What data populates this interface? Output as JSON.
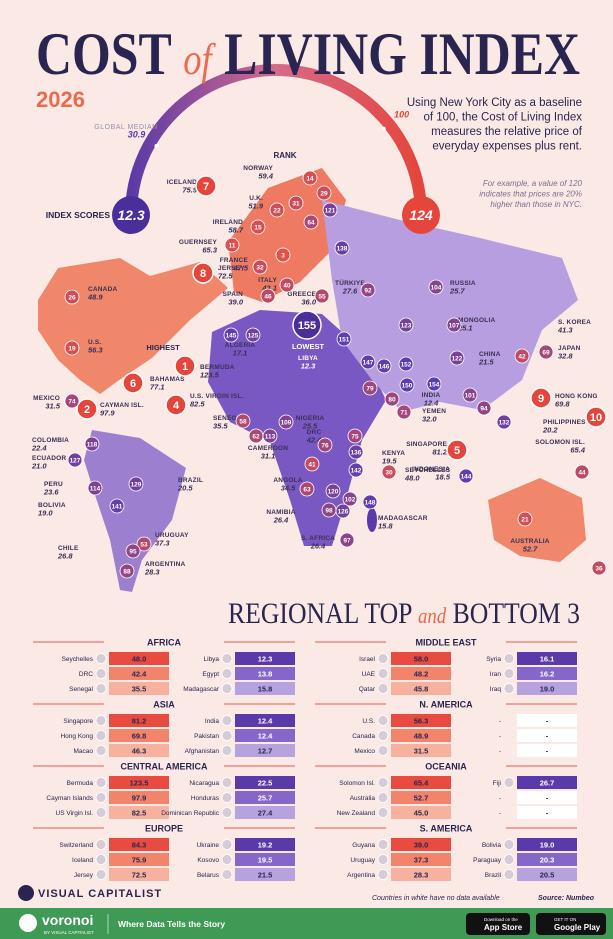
{
  "header": {
    "title_part1": "COST",
    "title_of": "of",
    "title_part2": "LIVING INDEX",
    "year": "2026",
    "description_lines": [
      "Using New York City as a baseline",
      "of 100, the Cost of Living Index",
      "measures the relative price of",
      "everyday expenses plus rent."
    ],
    "example_lines": [
      "For example, a value of 120",
      "indicates that prices are 20%",
      "higher than those in NYC."
    ]
  },
  "scale": {
    "label": "INDEX SCORES",
    "min": 12.3,
    "max": 124,
    "median": 30.9,
    "median_label": "GLOBAL MEDIAN",
    "baseline": 100,
    "rank_label": "RANK",
    "highest_label": "HIGHEST",
    "lowest_label": "LOWEST"
  },
  "map_labels": [
    {
      "name": "ICELAND",
      "value": "75.9",
      "rank": 7
    },
    {
      "name": "NORWAY",
      "value": "59.4"
    },
    {
      "name": "U.K.",
      "value": "51.9"
    },
    {
      "name": "IRELAND",
      "value": "58.7"
    },
    {
      "name": "GUERNSEY",
      "value": "65.3"
    },
    {
      "name": "JERSEY",
      "value": "72.5",
      "rank": 8
    },
    {
      "name": "FRANCE",
      "value": "47.5"
    },
    {
      "name": "ITALY",
      "value": "43.1"
    },
    {
      "name": "SPAIN",
      "value": "39.0"
    },
    {
      "name": "GREECE",
      "value": "36.0"
    },
    {
      "name": "TÜRKIYE",
      "value": "27.6"
    },
    {
      "name": "RUSSIA",
      "value": "25.7"
    },
    {
      "name": "CANADA",
      "value": "48.9"
    },
    {
      "name": "U.S.",
      "value": "56.3"
    },
    {
      "name": "MEXICO",
      "value": "31.5"
    },
    {
      "name": "BAHAMAS",
      "value": "77.1",
      "rank": 6
    },
    {
      "name": "CAYMAN ISL.",
      "value": "97.9",
      "rank": 2
    },
    {
      "name": "U.S. VIRGIN ISL.",
      "value": "82.5",
      "rank": 4
    },
    {
      "name": "BERMUDA",
      "value": "123.5",
      "rank": 1
    },
    {
      "name": "SENEGAL",
      "value": "35.5"
    },
    {
      "name": "ALGERIA",
      "value": "17.1"
    },
    {
      "name": "LIBYA",
      "value": "12.3",
      "rank": 155
    },
    {
      "name": "NIGERIA",
      "value": "25.5"
    },
    {
      "name": "CAMEROON",
      "value": "31.1"
    },
    {
      "name": "DRC",
      "value": "42.4"
    },
    {
      "name": "ANGOLA",
      "value": "34.5"
    },
    {
      "name": "NAMIBIA",
      "value": "26.4"
    },
    {
      "name": "S. AFRICA",
      "value": "26.4"
    },
    {
      "name": "KENYA",
      "value": "19.5"
    },
    {
      "name": "SEYCHELLES",
      "value": "48.0"
    },
    {
      "name": "MADAGASCAR",
      "value": "15.8"
    },
    {
      "name": "YEMEN",
      "value": "32.0"
    },
    {
      "name": "SINGAPORE",
      "value": "81.2",
      "rank": 5
    },
    {
      "name": "INDIA",
      "value": "12.4"
    },
    {
      "name": "CHINA",
      "value": "21.5"
    },
    {
      "name": "MONGOLIA",
      "value": "25.1"
    },
    {
      "name": "S. KOREA",
      "value": "41.3"
    },
    {
      "name": "JAPAN",
      "value": "32.8"
    },
    {
      "name": "HONG KONG",
      "value": "69.8",
      "rank": 9
    },
    {
      "name": "PHILIPPINES",
      "value": "20.2"
    },
    {
      "name": "SOLOMON ISL.",
      "value": "65.4",
      "rank": 10
    },
    {
      "name": "INDONESIA",
      "value": "18.5"
    },
    {
      "name": "AUSTRALIA",
      "value": "52.7"
    },
    {
      "name": "COLOMBIA",
      "value": "22.4"
    },
    {
      "name": "ECUADOR",
      "value": "21.0"
    },
    {
      "name": "PERU",
      "value": "23.6"
    },
    {
      "name": "BOLIVIA",
      "value": "19.0"
    },
    {
      "name": "BRAZIL",
      "value": "20.5"
    },
    {
      "name": "URUGUAY",
      "value": "37.3"
    },
    {
      "name": "CHILE",
      "value": "26.8"
    },
    {
      "name": "ARGENTINA",
      "value": "28.3"
    }
  ],
  "map_ranks": [
    14,
    29,
    31,
    22,
    15,
    11,
    64,
    121,
    3,
    32,
    40,
    138,
    55,
    92,
    46,
    26,
    19,
    125,
    145,
    151,
    104,
    123,
    107,
    122,
    147,
    146,
    152,
    150,
    154,
    101,
    94,
    42,
    69,
    132,
    79,
    80,
    71,
    74,
    58,
    62,
    113,
    109,
    75,
    76,
    136,
    142,
    41,
    63,
    120,
    102,
    98,
    126,
    97,
    148,
    30,
    144,
    44,
    21,
    36,
    127,
    118,
    114,
    129,
    141,
    53,
    88,
    95
  ],
  "regional": {
    "title_part1": "REGIONAL TOP",
    "title_and": "and",
    "title_part2": "BOTTOM 3",
    "regions": [
      {
        "name": "AFRICA",
        "top": [
          {
            "name": "Seychelles",
            "value": "48.0"
          },
          {
            "name": "DRC",
            "value": "42.4"
          },
          {
            "name": "Senegal",
            "value": "35.5"
          }
        ],
        "bottom": [
          {
            "name": "Libya",
            "value": "12.3"
          },
          {
            "name": "Egypt",
            "value": "13.8"
          },
          {
            "name": "Madagascar",
            "value": "15.8"
          }
        ]
      },
      {
        "name": "MIDDLE EAST",
        "top": [
          {
            "name": "Israel",
            "value": "58.0"
          },
          {
            "name": "UAE",
            "value": "48.2"
          },
          {
            "name": "Qatar",
            "value": "45.8"
          }
        ],
        "bottom": [
          {
            "name": "Syria",
            "value": "16.1"
          },
          {
            "name": "Iran",
            "value": "16.2"
          },
          {
            "name": "Iraq",
            "value": "19.0"
          }
        ]
      },
      {
        "name": "ASIA",
        "top": [
          {
            "name": "Singapore",
            "value": "81.2"
          },
          {
            "name": "Hong Kong",
            "value": "69.8"
          },
          {
            "name": "Macao",
            "value": "46.3"
          }
        ],
        "bottom": [
          {
            "name": "India",
            "value": "12.4"
          },
          {
            "name": "Pakistan",
            "value": "12.4"
          },
          {
            "name": "Afghanistan",
            "value": "12.7"
          }
        ]
      },
      {
        "name": "N. AMERICA",
        "top": [
          {
            "name": "U.S.",
            "value": "56.3"
          },
          {
            "name": "Canada",
            "value": "48.9"
          },
          {
            "name": "Mexico",
            "value": "31.5"
          }
        ],
        "bottom": [
          {
            "name": "-",
            "value": "-"
          },
          {
            "name": "-",
            "value": "-"
          },
          {
            "name": "-",
            "value": "-"
          }
        ]
      },
      {
        "name": "CENTRAL AMERICA",
        "top": [
          {
            "name": "Bermuda",
            "value": "123.5"
          },
          {
            "name": "Cayman Islands",
            "value": "97.9"
          },
          {
            "name": "US Virgin Isl.",
            "value": "82.5"
          }
        ],
        "bottom": [
          {
            "name": "Nicaragua",
            "value": "22.5"
          },
          {
            "name": "Honduras",
            "value": "25.7"
          },
          {
            "name": "Dominican Republic",
            "value": "27.4"
          }
        ]
      },
      {
        "name": "OCEANIA",
        "top": [
          {
            "name": "Solomon Isl.",
            "value": "65.4"
          },
          {
            "name": "Australia",
            "value": "52.7"
          },
          {
            "name": "New Zealand",
            "value": "45.0"
          }
        ],
        "bottom": [
          {
            "name": "Fiji",
            "value": "26.7"
          },
          {
            "name": "-",
            "value": "-"
          },
          {
            "name": "-",
            "value": "-"
          }
        ]
      },
      {
        "name": "EUROPE",
        "top": [
          {
            "name": "Switzerland",
            "value": "84.3"
          },
          {
            "name": "Iceland",
            "value": "75.9"
          },
          {
            "name": "Jersey",
            "value": "72.5"
          }
        ],
        "bottom": [
          {
            "name": "Ukraine",
            "value": "19.2"
          },
          {
            "name": "Kosovo",
            "value": "19.5"
          },
          {
            "name": "Belarus",
            "value": "21.5"
          }
        ]
      },
      {
        "name": "S. AMERICA",
        "top": [
          {
            "name": "Guyana",
            "value": "39.0"
          },
          {
            "name": "Uruguay",
            "value": "37.3"
          },
          {
            "name": "Argentina",
            "value": "28.3"
          }
        ],
        "bottom": [
          {
            "name": "Bolivia",
            "value": "19.0"
          },
          {
            "name": "Paraguay",
            "value": "20.3"
          },
          {
            "name": "Brazil",
            "value": "20.5"
          }
        ]
      }
    ]
  },
  "footer": {
    "brand": "VISUAL CAPITALIST",
    "note": "Countries in white have no data available",
    "source": "Source: Numbeo",
    "voronoi": "voronoi",
    "voronoi_sub": "BY VISUAL CAPITALIST",
    "tagline": "Where Data Tells the Story",
    "app_store_top": "Download on the",
    "app_store": "App Store",
    "google_top": "GET IT ON",
    "google": "Google Play"
  }
}
